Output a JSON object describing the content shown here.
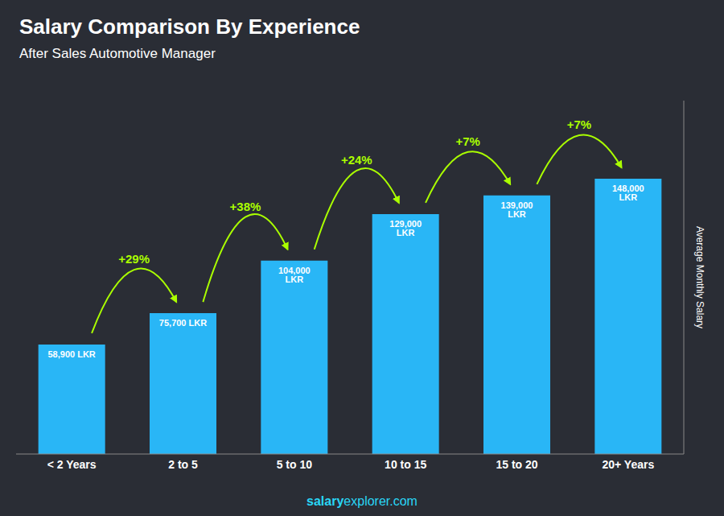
{
  "chart_data": {
    "type": "bar",
    "title": "Salary Comparison By Experience",
    "subtitle": "After Sales Automotive Manager",
    "ylabel": "Average Monthly Salary",
    "categories": [
      "< 2 Years",
      "2 to 5",
      "5 to 10",
      "10 to 15",
      "15 to 20",
      "20+ Years"
    ],
    "values": [
      58900,
      75700,
      104000,
      129000,
      139000,
      148000
    ],
    "value_labels": [
      "58,900 LKR",
      "75,700 LKR",
      "104,000 LKR",
      "129,000 LKR",
      "139,000 LKR",
      "148,000 LKR"
    ],
    "data_labels": true,
    "color": "#29b6f6",
    "ylim": [
      0,
      190000
    ],
    "grid": false,
    "tick_labels": "x",
    "annotations": [
      {
        "text": "+29%",
        "color": "#aaff00"
      },
      {
        "text": "+38%",
        "color": "#aaff00"
      },
      {
        "text": "+24%",
        "color": "#aaff00"
      },
      {
        "text": "+7%",
        "color": "#aaff00"
      },
      {
        "text": "+7%",
        "color": "#aaff00"
      }
    ],
    "footer": [
      {
        "text": "salary",
        "color": "#29d6f6"
      },
      {
        "text": "explorer.com",
        "color": "#29d6f6"
      }
    ]
  }
}
